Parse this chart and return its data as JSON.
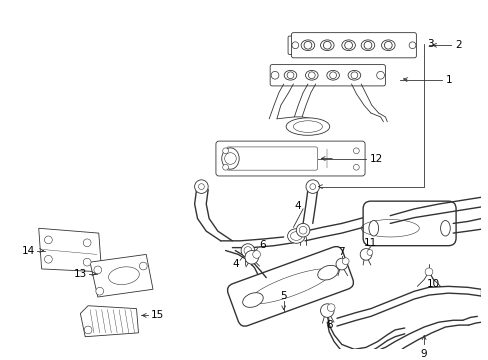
{
  "background_color": "#ffffff",
  "line_color": "#333333",
  "label_color": "#000000",
  "lw_main": 1.0,
  "lw_thin": 0.6,
  "label_fs": 7.5
}
